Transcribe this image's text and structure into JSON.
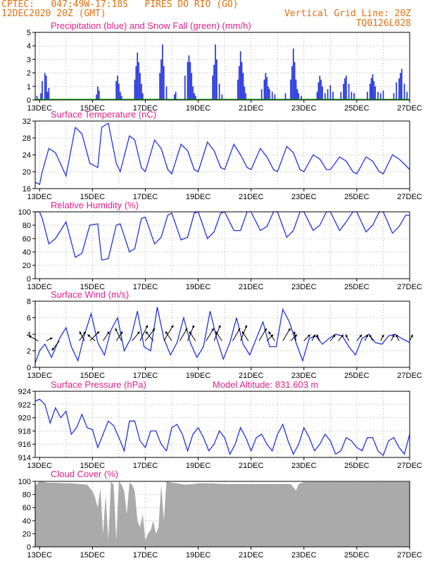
{
  "header": {
    "station": "CPTEC:   047:49W-17:18S   PIRES DO RIO (GO)",
    "date": "12DEC2020 20Z (GMT)",
    "grid_note": "Vertical Grid Line: 20Z",
    "code": "TQ0126L028"
  },
  "colors": {
    "header_text": "#e07010",
    "panel_title": "#e0208a",
    "line": "#2233dd",
    "bar": "#2233dd",
    "snow": "#00aa00",
    "cloud": "#aaaaaa",
    "grid": "#999999"
  },
  "x_axis": {
    "start_day": 12.833,
    "end_day": 27.0,
    "tick_labels": [
      "13DEC",
      "15DEC",
      "17DEC",
      "19DEC",
      "21DEC",
      "23DEC",
      "25DEC",
      "27DEC"
    ],
    "tick_days": [
      13,
      15,
      17,
      19,
      21,
      23,
      25,
      27
    ]
  },
  "chart_data": [
    {
      "id": "precip",
      "type": "bar",
      "title": "Precipitation (blue) and Snow Fall (green) (mm/h)",
      "ylim": [
        0,
        5
      ],
      "yticks": [
        0,
        1,
        2,
        3,
        4,
        5
      ],
      "series": [
        {
          "name": "Precipitation",
          "x": [
            12.9,
            13.05,
            13.1,
            13.2,
            13.25,
            13.3,
            13.35,
            15.15,
            15.2,
            15.25,
            15.9,
            15.95,
            16.0,
            16.05,
            16.1,
            16.6,
            16.65,
            16.7,
            16.75,
            16.8,
            16.85,
            16.9,
            17.55,
            17.6,
            17.65,
            17.7,
            17.8,
            18.1,
            18.15,
            18.5,
            18.6,
            18.65,
            18.7,
            18.75,
            18.8,
            18.85,
            18.9,
            19.55,
            19.6,
            19.65,
            19.7,
            19.8,
            19.9,
            20.5,
            20.55,
            20.6,
            20.65,
            20.7,
            20.75,
            20.8,
            21.4,
            21.5,
            21.55,
            21.6,
            21.65,
            21.7,
            21.8,
            21.9,
            22.3,
            22.5,
            22.55,
            22.6,
            22.65,
            22.7,
            22.75,
            22.8,
            22.9,
            23.5,
            23.55,
            23.6,
            23.65,
            23.7,
            23.8,
            23.9,
            24.0,
            24.1,
            24.4,
            24.5,
            24.55,
            24.6,
            24.7,
            24.8,
            24.9,
            25.4,
            25.5,
            25.55,
            25.6,
            25.65,
            25.7,
            25.8,
            25.9,
            26.0,
            26.4,
            26.5,
            26.6,
            26.65,
            26.7,
            26.8,
            26.9
          ],
          "values": [
            0.3,
            0.5,
            1.4,
            2.0,
            1.8,
            0.6,
            0.9,
            0.4,
            1.0,
            0.7,
            1.4,
            1.8,
            1.2,
            0.6,
            0.3,
            1.5,
            2.5,
            3.5,
            2.8,
            2.0,
            1.2,
            0.5,
            2.0,
            3.0,
            4.1,
            2.5,
            1.0,
            0.4,
            0.6,
            1.8,
            2.8,
            3.3,
            2.8,
            2.0,
            1.0,
            0.5,
            0.3,
            1.8,
            2.6,
            4.1,
            3.0,
            1.2,
            0.4,
            1.5,
            2.5,
            3.6,
            2.8,
            2.0,
            1.0,
            0.5,
            0.8,
            1.5,
            2.0,
            1.7,
            1.0,
            0.8,
            0.6,
            0.4,
            0.5,
            1.5,
            2.5,
            3.8,
            2.8,
            1.5,
            0.8,
            0.5,
            0.3,
            0.6,
            1.3,
            1.8,
            1.5,
            1.0,
            0.5,
            0.8,
            1.1,
            0.6,
            0.6,
            1.2,
            1.6,
            1.8,
            1.2,
            0.6,
            0.5,
            0.6,
            1.2,
            1.6,
            1.9,
            1.4,
            1.0,
            0.6,
            0.5,
            0.7,
            0.5,
            1.3,
            1.6,
            2.0,
            2.3,
            1.2,
            0.6
          ]
        },
        {
          "name": "Snow Fall",
          "x": [],
          "values": []
        }
      ]
    },
    {
      "id": "temperature",
      "type": "line",
      "title": "Surface Temperature (nC)",
      "ylim": [
        16,
        32
      ],
      "yticks": [
        16,
        20,
        24,
        28,
        32
      ],
      "x": [
        12.83,
        13.0,
        13.1,
        13.35,
        13.6,
        14.0,
        14.35,
        14.6,
        14.9,
        15.2,
        15.35,
        15.6,
        15.9,
        16.05,
        16.4,
        16.6,
        16.85,
        17.0,
        17.35,
        17.6,
        17.85,
        18.0,
        18.35,
        18.6,
        18.85,
        19.0,
        19.35,
        19.6,
        19.85,
        20.0,
        20.35,
        20.6,
        20.85,
        21.0,
        21.35,
        21.6,
        21.85,
        22.0,
        22.35,
        22.6,
        22.85,
        23.0,
        23.35,
        23.6,
        23.85,
        24.0,
        24.35,
        24.6,
        24.85,
        25.0,
        25.35,
        25.6,
        25.85,
        26.0,
        26.35,
        26.6,
        26.85,
        27.0
      ],
      "y": [
        17.5,
        17.0,
        20,
        25.5,
        24.5,
        19.0,
        30.5,
        29.0,
        22,
        21,
        30.5,
        31.5,
        22,
        20,
        28.5,
        27.5,
        21,
        20,
        27.5,
        25.5,
        20.5,
        19.5,
        26.5,
        25.0,
        20.5,
        20.0,
        27.0,
        25.0,
        21.0,
        20.5,
        26.5,
        24.0,
        21.0,
        20.5,
        25.5,
        23.5,
        20.5,
        20.0,
        26.0,
        24.5,
        20.5,
        20.0,
        24.0,
        23.0,
        20.5,
        20.5,
        23.5,
        22.5,
        20.0,
        19.5,
        23.5,
        22.5,
        20.0,
        19.5,
        24.0,
        23.0,
        21.5,
        20.5
      ]
    },
    {
      "id": "humidity",
      "type": "line",
      "title": "Relative Humidity (%)",
      "ylim": [
        0,
        100
      ],
      "yticks": [
        0,
        20,
        40,
        60,
        80,
        100
      ],
      "x": [
        12.83,
        13.0,
        13.1,
        13.35,
        13.6,
        14.0,
        14.35,
        14.6,
        14.9,
        15.2,
        15.35,
        15.6,
        15.9,
        16.05,
        16.4,
        16.6,
        16.85,
        17.0,
        17.35,
        17.6,
        17.85,
        18.0,
        18.35,
        18.6,
        18.85,
        19.0,
        19.35,
        19.6,
        19.85,
        20.0,
        20.35,
        20.6,
        20.85,
        21.0,
        21.35,
        21.6,
        21.85,
        22.0,
        22.35,
        22.6,
        22.85,
        23.0,
        23.35,
        23.6,
        23.85,
        24.0,
        24.35,
        24.6,
        24.85,
        25.0,
        25.35,
        25.6,
        25.85,
        26.0,
        26.35,
        26.6,
        26.85,
        27.0
      ],
      "y": [
        100,
        100,
        90,
        52,
        60,
        85,
        32,
        38,
        80,
        82,
        28,
        30,
        80,
        82,
        40,
        45,
        90,
        92,
        52,
        62,
        95,
        98,
        58,
        62,
        98,
        100,
        60,
        70,
        98,
        100,
        72,
        72,
        100,
        100,
        72,
        78,
        100,
        100,
        62,
        72,
        100,
        100,
        72,
        80,
        100,
        100,
        72,
        85,
        100,
        100,
        70,
        80,
        100,
        100,
        68,
        78,
        95,
        95
      ]
    },
    {
      "id": "wind",
      "type": "line",
      "title": "Surface Wind (m/s)",
      "ylim": [
        0,
        8
      ],
      "yticks": [
        0,
        2,
        4,
        6,
        8
      ],
      "x": [
        12.83,
        13.0,
        13.2,
        13.45,
        13.75,
        14.0,
        14.2,
        14.45,
        14.7,
        14.95,
        15.2,
        15.45,
        15.7,
        15.95,
        16.2,
        16.45,
        16.7,
        16.95,
        17.2,
        17.45,
        17.7,
        17.95,
        18.2,
        18.45,
        18.7,
        18.95,
        19.2,
        19.45,
        19.7,
        19.95,
        20.2,
        20.45,
        20.7,
        20.95,
        21.2,
        21.45,
        21.7,
        21.95,
        22.2,
        22.45,
        22.7,
        22.95,
        23.2,
        23.45,
        23.7,
        23.95,
        24.2,
        24.45,
        24.7,
        24.95,
        25.2,
        25.45,
        25.7,
        25.95,
        26.2,
        26.45,
        26.7,
        27.0
      ],
      "y": [
        0.5,
        2.0,
        2.8,
        1.2,
        3.5,
        4.8,
        2.5,
        0.8,
        4.0,
        6.5,
        3.0,
        1.5,
        4.5,
        6.0,
        2.0,
        3.5,
        6.8,
        2.5,
        2.0,
        7.3,
        3.5,
        1.5,
        3.0,
        6.0,
        3.0,
        1.2,
        2.5,
        6.8,
        3.5,
        1.0,
        3.0,
        6.0,
        2.8,
        1.5,
        3.5,
        5.5,
        2.5,
        2.5,
        7.0,
        5.5,
        3.0,
        0.8,
        3.5,
        3.8,
        2.8,
        3.5,
        4.0,
        3.8,
        2.5,
        1.5,
        3.5,
        4.0,
        3.0,
        2.8,
        3.8,
        4.0,
        3.5,
        3.0
      ],
      "vectors": {
        "x": [
          12.95,
          13.25,
          13.75,
          14.5,
          14.7,
          14.9,
          15.1,
          15.4,
          15.9,
          16.1,
          16.5,
          16.8,
          17.0,
          17.3,
          17.7,
          18.0,
          18.3,
          18.6,
          18.9,
          19.3,
          19.6,
          19.9,
          20.3,
          20.6,
          20.9,
          21.3,
          21.6,
          21.9,
          22.2,
          22.5,
          22.7,
          23.0,
          23.3,
          23.6,
          24.0,
          24.3,
          24.7,
          25.0,
          25.3,
          25.6,
          25.9,
          26.3,
          26.6,
          27.0
        ],
        "u": [
          -1.5,
          1.0,
          -1.2,
          1.0,
          -0.8,
          1.5,
          -1.2,
          1.0,
          1.0,
          -1.0,
          1.2,
          1.2,
          1.5,
          -1.2,
          1.5,
          -1.0,
          1.2,
          1.0,
          -1.0,
          1.2,
          1.0,
          -1.0,
          1.2,
          1.0,
          -1.0,
          1.2,
          1.0,
          -1.0,
          1.2,
          1.0,
          -0.3,
          1.0,
          0.5,
          -0.5,
          0.8,
          0.8,
          -0.5,
          0.8,
          0.5,
          -0.5,
          0.5,
          0.5,
          -0.5,
          0.5
        ],
        "v": [
          0.8,
          0.5,
          -1.5,
          1.5,
          1.5,
          1.5,
          1.0,
          1.5,
          1.5,
          2.0,
          1.5,
          2.5,
          2.0,
          1.5,
          2.5,
          1.5,
          2.0,
          2.5,
          1.5,
          2.0,
          2.5,
          1.5,
          2.0,
          2.5,
          1.5,
          2.0,
          1.0,
          1.5,
          2.0,
          1.0,
          1.5,
          1.0,
          1.0,
          1.0,
          1.0,
          1.0,
          1.0,
          1.0,
          1.0,
          1.0,
          1.0,
          1.0,
          1.0,
          1.0
        ]
      }
    },
    {
      "id": "pressure",
      "type": "line",
      "title": "Surface Pressure (hPa)",
      "subtitle": "Model Altitude: 831.603 m",
      "ylim": [
        914,
        924
      ],
      "yticks": [
        914,
        916,
        918,
        920,
        922,
        924
      ],
      "x": [
        12.83,
        13.0,
        13.2,
        13.4,
        13.6,
        13.8,
        14.0,
        14.2,
        14.4,
        14.6,
        14.8,
        15.0,
        15.2,
        15.4,
        15.6,
        15.8,
        16.0,
        16.2,
        16.4,
        16.6,
        16.8,
        17.0,
        17.2,
        17.4,
        17.6,
        17.8,
        18.0,
        18.2,
        18.4,
        18.6,
        18.8,
        19.0,
        19.2,
        19.4,
        19.6,
        19.8,
        20.0,
        20.2,
        20.4,
        20.6,
        20.8,
        21.0,
        21.2,
        21.4,
        21.6,
        21.8,
        22.0,
        22.2,
        22.4,
        22.6,
        22.8,
        23.0,
        23.2,
        23.4,
        23.6,
        23.8,
        24.0,
        24.2,
        24.4,
        24.6,
        24.8,
        25.0,
        25.2,
        25.4,
        25.6,
        25.8,
        26.0,
        26.2,
        26.4,
        26.6,
        26.8,
        27.0
      ],
      "y": [
        922.5,
        922.8,
        922.0,
        919.2,
        921.5,
        920.0,
        921.0,
        917.5,
        918.5,
        920.5,
        918.5,
        918.2,
        915.5,
        917.5,
        919.5,
        918.8,
        917.0,
        915.0,
        919.5,
        919.5,
        916.5,
        915.5,
        918.0,
        918.0,
        916.0,
        915.0,
        918.5,
        919.0,
        917.5,
        915.0,
        917.5,
        918.5,
        917.0,
        915.0,
        916.0,
        918.0,
        917.0,
        914.5,
        916.0,
        918.5,
        917.0,
        915.0,
        917.0,
        917.5,
        916.0,
        915.0,
        917.5,
        919.0,
        916.5,
        914.5,
        916.0,
        918.5,
        917.0,
        915.0,
        916.0,
        917.5,
        916.5,
        914.5,
        915.0,
        917.0,
        916.5,
        915.5,
        915.0,
        917.0,
        917.0,
        915.0,
        914.3,
        916.5,
        917.0,
        915.5,
        914.5,
        917.5
      ]
    },
    {
      "id": "cloud",
      "type": "area",
      "title": "Cloud Cover (%)",
      "ylim": [
        0,
        100
      ],
      "yticks": [
        0,
        20,
        40,
        60,
        80,
        100
      ],
      "x": [
        12.83,
        13.0,
        13.3,
        13.6,
        13.9,
        14.2,
        14.5,
        14.8,
        15.0,
        15.1,
        15.2,
        15.3,
        15.4,
        15.5,
        15.6,
        15.7,
        15.8,
        15.9,
        16.0,
        16.1,
        16.2,
        16.3,
        16.4,
        16.5,
        16.6,
        16.7,
        16.8,
        16.9,
        17.0,
        17.1,
        17.2,
        17.3,
        17.4,
        17.5,
        17.6,
        17.7,
        17.8,
        18.0,
        18.2,
        18.5,
        18.8,
        19.0,
        19.5,
        20.0,
        22.5,
        22.7,
        22.8,
        23.0,
        24.0,
        25.0,
        26.0,
        27.0
      ],
      "y": [
        93,
        100,
        98,
        98,
        97,
        97,
        96,
        95,
        85,
        75,
        60,
        90,
        20,
        80,
        10,
        100,
        95,
        10,
        100,
        95,
        85,
        50,
        98,
        95,
        85,
        40,
        30,
        50,
        10,
        20,
        25,
        40,
        20,
        30,
        95,
        40,
        100,
        98,
        97,
        95,
        96,
        97,
        97,
        96,
        96,
        86,
        96,
        99,
        99,
        99,
        99,
        99
      ]
    }
  ]
}
